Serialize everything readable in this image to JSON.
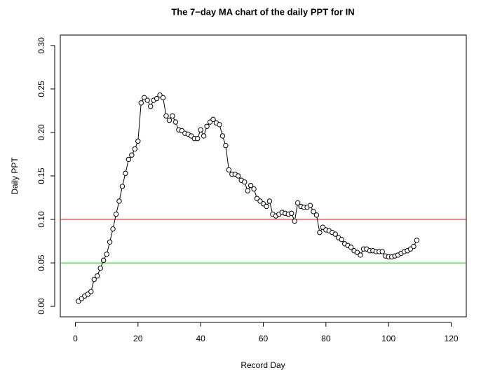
{
  "chart_data": {
    "type": "line",
    "title": "The 7−day MA chart of the daily PPT for IN",
    "xlabel": "Record Day",
    "ylabel": "Daily PPT",
    "x": [
      1,
      2,
      3,
      4,
      5,
      6,
      7,
      8,
      9,
      10,
      11,
      12,
      13,
      14,
      15,
      16,
      17,
      18,
      19,
      20,
      21,
      22,
      23,
      24,
      25,
      26,
      27,
      28,
      29,
      30,
      31,
      32,
      33,
      34,
      35,
      36,
      37,
      38,
      39,
      40,
      41,
      42,
      43,
      44,
      45,
      46,
      47,
      48,
      49,
      50,
      51,
      52,
      53,
      54,
      55,
      56,
      57,
      58,
      59,
      60,
      61,
      62,
      63,
      64,
      65,
      66,
      67,
      68,
      69,
      70,
      71,
      72,
      73,
      74,
      75,
      76,
      77,
      78,
      79,
      80,
      81,
      82,
      83,
      84,
      85,
      86,
      87,
      88,
      89,
      90,
      91,
      92,
      93,
      94,
      95,
      96,
      97,
      98,
      99,
      100,
      101,
      102,
      103,
      104,
      105,
      106,
      107,
      108,
      109
    ],
    "series": [
      {
        "color": "#000000",
        "values": [
          0.006,
          0.009,
          0.012,
          0.014,
          0.017,
          0.031,
          0.035,
          0.044,
          0.053,
          0.06,
          0.074,
          0.089,
          0.106,
          0.121,
          0.138,
          0.153,
          0.169,
          0.174,
          0.181,
          0.19,
          0.234,
          0.24,
          0.237,
          0.23,
          0.237,
          0.239,
          0.243,
          0.24,
          0.219,
          0.214,
          0.219,
          0.212,
          0.203,
          0.202,
          0.199,
          0.198,
          0.196,
          0.193,
          0.193,
          0.203,
          0.196,
          0.207,
          0.212,
          0.215,
          0.211,
          0.209,
          0.196,
          0.185,
          0.157,
          0.152,
          0.152,
          0.15,
          0.145,
          0.143,
          0.133,
          0.139,
          0.135,
          0.124,
          0.121,
          0.118,
          0.115,
          0.121,
          0.106,
          0.104,
          0.106,
          0.108,
          0.107,
          0.106,
          0.107,
          0.098,
          0.119,
          0.115,
          0.114,
          0.114,
          0.116,
          0.109,
          0.105,
          0.085,
          0.091,
          0.088,
          0.087,
          0.085,
          0.083,
          0.079,
          0.077,
          0.072,
          0.07,
          0.068,
          0.064,
          0.062,
          0.059,
          0.066,
          0.066,
          0.064,
          0.064,
          0.063,
          0.063,
          0.063,
          0.058,
          0.057,
          0.057,
          0.058,
          0.059,
          0.061,
          0.063,
          0.064,
          0.066,
          0.069,
          0.076
        ]
      }
    ],
    "hlines": [
      {
        "value": 0.1,
        "color": "#ff0000"
      },
      {
        "value": 0.05,
        "color": "#00cc00"
      }
    ],
    "xlim": [
      -4.8,
      124.8
    ],
    "ylim": [
      -0.012,
      0.312
    ],
    "xticks": [
      0,
      20,
      40,
      60,
      80,
      100,
      120
    ],
    "yticks": [
      {
        "value": 0,
        "label": "0.00"
      },
      {
        "value": 0.05,
        "label": "0.05"
      },
      {
        "value": 0.1,
        "label": "0.10"
      },
      {
        "value": 0.15,
        "label": "0.15"
      },
      {
        "value": 0.2,
        "label": "0.20"
      },
      {
        "value": 0.25,
        "label": "0.25"
      },
      {
        "value": 0.3,
        "label": "0.30"
      }
    ]
  }
}
